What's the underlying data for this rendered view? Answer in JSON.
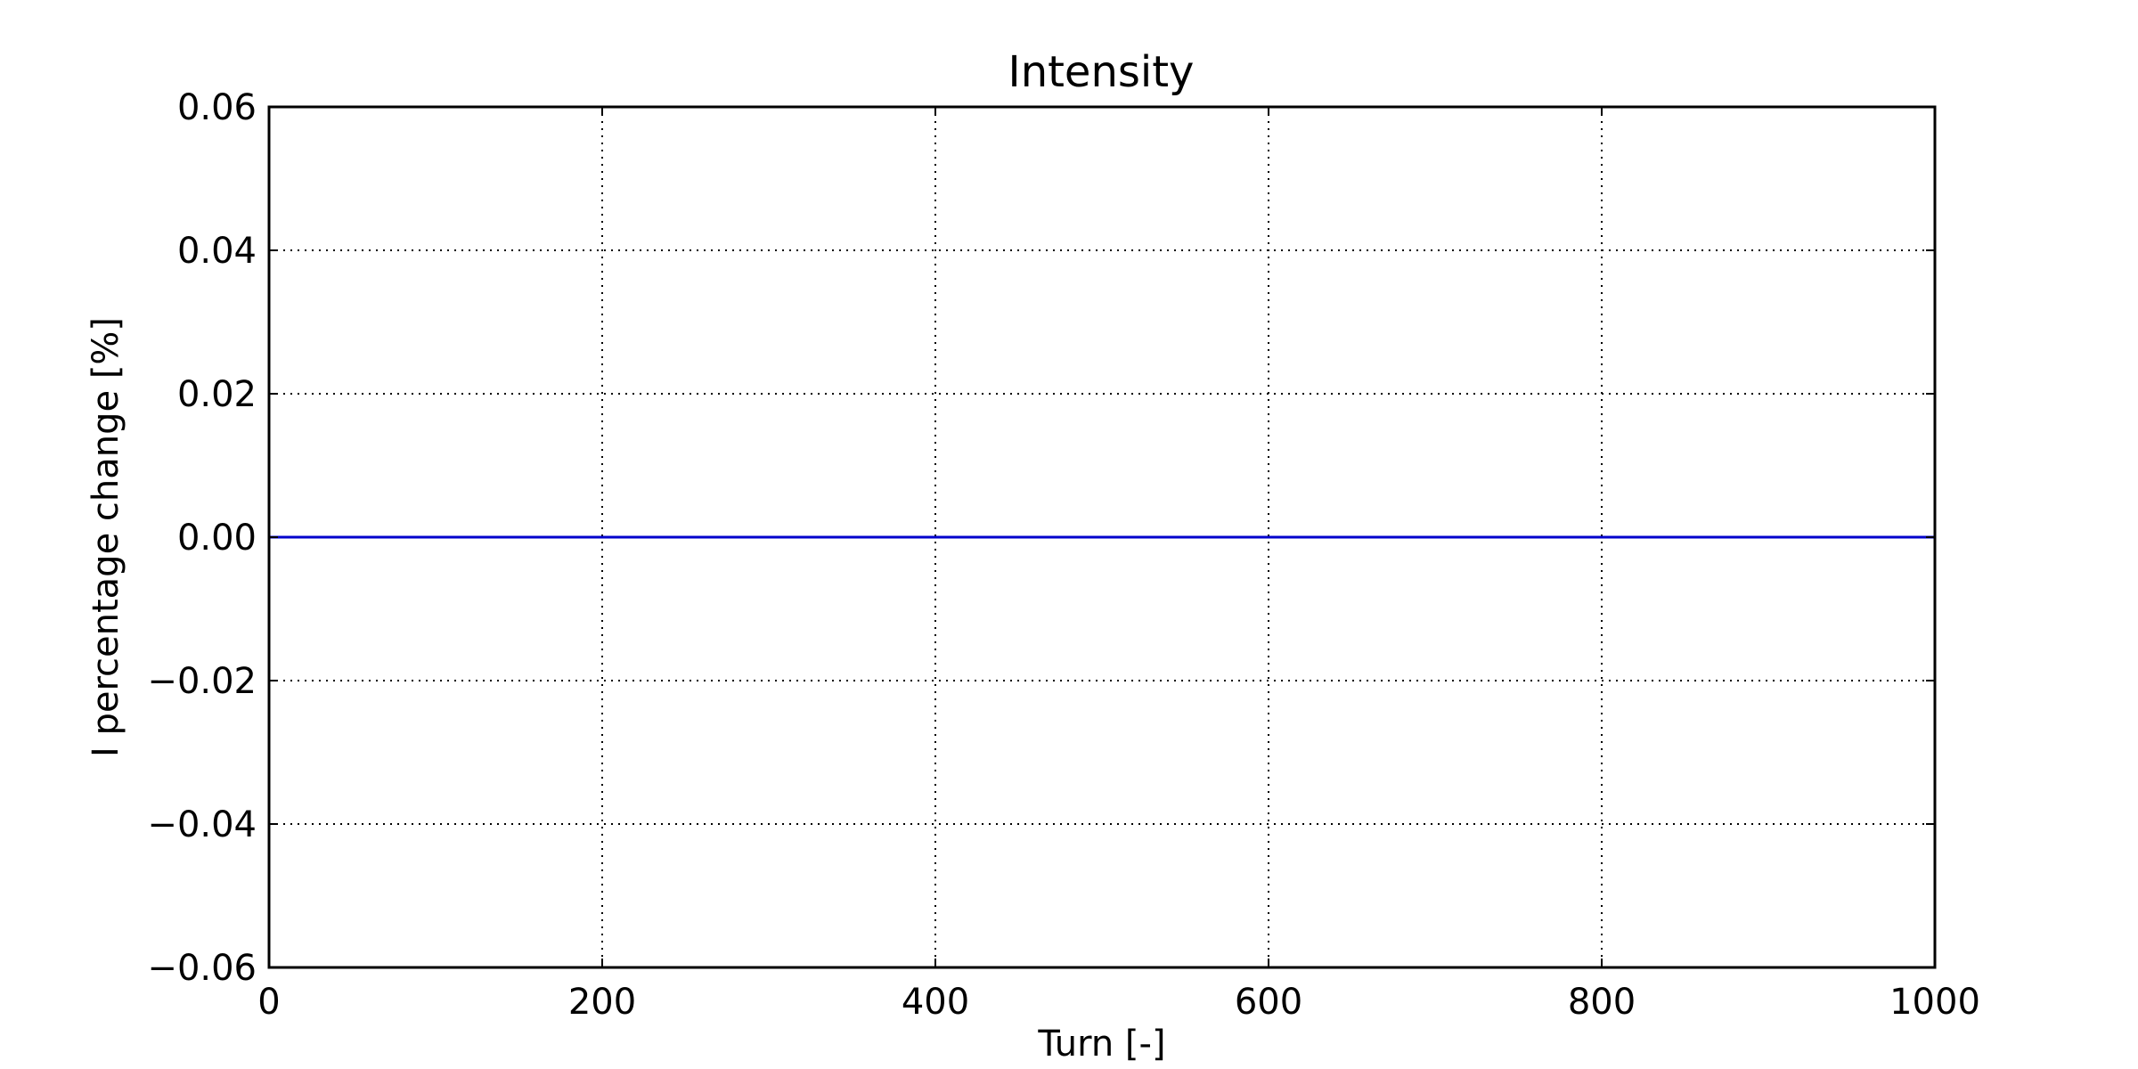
{
  "chart_data": {
    "type": "line",
    "title": "Intensity",
    "xlabel": "Turn [-]",
    "ylabel": "I percentage change [%]",
    "xlim": [
      0,
      1000
    ],
    "ylim": [
      -0.06,
      0.06
    ],
    "xticks": [
      0,
      200,
      400,
      600,
      800,
      1000
    ],
    "xtick_labels": [
      "0",
      "200",
      "400",
      "600",
      "800",
      "1000"
    ],
    "yticks": [
      0.06,
      0.04,
      0.02,
      0.0,
      -0.02,
      -0.04,
      -0.06
    ],
    "ytick_labels": [
      "0.06",
      "0.04",
      "0.02",
      "0.00",
      "−0.02",
      "−0.04",
      "−0.06"
    ],
    "grid": true,
    "series": [
      {
        "color": "#0000cc",
        "x": [
          0,
          100,
          200,
          300,
          400,
          500,
          600,
          700,
          800,
          900,
          1000
        ],
        "y": [
          0,
          0,
          0,
          0,
          0,
          0,
          0,
          0,
          0,
          0,
          0
        ]
      }
    ]
  }
}
